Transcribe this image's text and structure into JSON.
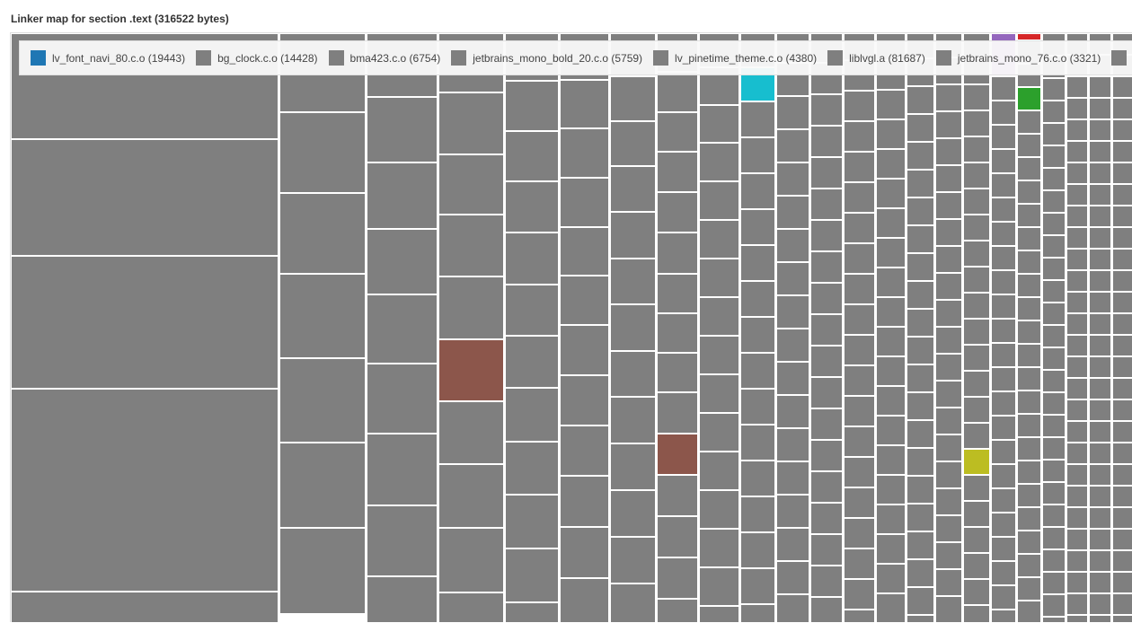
{
  "chart_data": {
    "type": "treemap",
    "title": "Linker map for section .text (316522 bytes)",
    "total_bytes": 316522,
    "legend_placement": "top",
    "legend": [
      {
        "label": "lv_font_navi_80.c.o (19443)",
        "color": "#1f77b4"
      },
      {
        "label": "bg_clock.c.o (14428)",
        "color": "#7f7f7f"
      },
      {
        "label": "bma423.c.o (6754)",
        "color": "#7f7f7f"
      },
      {
        "label": "jetbrains_mono_bold_20.c.o (5759)",
        "color": "#7f7f7f"
      },
      {
        "label": "lv_pinetime_theme.c.o (4380)",
        "color": "#7f7f7f"
      },
      {
        "label": "liblvgl.a (81687)",
        "color": "#7f7f7f"
      },
      {
        "label": "jetbrains_mono_76.c.o (3321)",
        "color": "#7f7f7f"
      },
      {
        "label": "",
        "color": "#7f7f7f"
      }
    ],
    "default_color": "#7f7f7f",
    "highlight_colors": [
      "#17becf",
      "#8c564b",
      "#bcbd22",
      "#2ca02c",
      "#d62728",
      "#9467bd"
    ]
  }
}
